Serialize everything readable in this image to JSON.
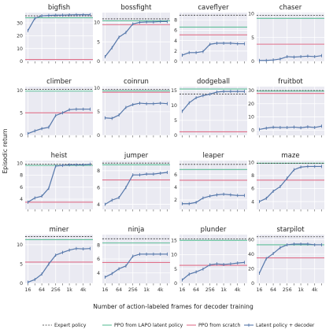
{
  "chart_data": {
    "type": "line",
    "ylabel": "Episodic return",
    "xlabel": "Number of action-labeled frames for decoder training",
    "x": [
      16,
      32,
      64,
      128,
      256,
      512,
      1000,
      2000,
      4000,
      8000
    ],
    "x_ticks": [
      "16",
      "64",
      "256",
      "1k",
      "4k"
    ],
    "x_tick_values": [
      16,
      64,
      256,
      1000,
      4000
    ],
    "x_scale": "log",
    "grid": true,
    "legend_position": "bottom",
    "legend": [
      {
        "key": "expert",
        "label": "Expert policy",
        "color": "#333333",
        "style": "dashed"
      },
      {
        "key": "lapo",
        "label": "PPO from LAPO latent policy",
        "color": "#5fbf99",
        "style": "solid"
      },
      {
        "key": "scratch",
        "label": "PPO from scratch",
        "color": "#e0708a",
        "style": "solid"
      },
      {
        "key": "latent",
        "label": "Latent policy + decoder",
        "color": "#5577aa",
        "style": "marker"
      }
    ],
    "panels": [
      {
        "title": "bigfish",
        "ylim": [
          0,
          38
        ],
        "yticks": [
          0,
          10,
          20,
          30
        ],
        "expert": 35.5,
        "lapo": 34,
        "scratch": 1.5,
        "values": [
          24,
          33.5,
          35.5,
          35.8,
          36,
          36,
          36.2,
          36.3,
          36.3,
          36.3
        ]
      },
      {
        "title": "bossfight",
        "ylim": [
          0,
          12.5
        ],
        "yticks": [
          0,
          5,
          10
        ],
        "expert": 10.9,
        "lapo": 10.4,
        "scratch": 9.4,
        "values": [
          1.2,
          3.5,
          6.2,
          7.4,
          9.6,
          10,
          10.1,
          10.1,
          10.2,
          10.2
        ]
      },
      {
        "title": "caveflyer",
        "ylim": [
          0,
          9.4
        ],
        "yticks": [
          0,
          2,
          4,
          6,
          8
        ],
        "expert": 8.9,
        "lapo": 6.6,
        "scratch": 5.1,
        "values": [
          1.2,
          1.7,
          1.7,
          1.9,
          3.3,
          3.5,
          3.5,
          3.5,
          3.4,
          3.4
        ]
      },
      {
        "title": "chaser",
        "ylim": [
          0,
          10.2
        ],
        "yticks": [
          0,
          5,
          10
        ],
        "expert": 9.6,
        "lapo": 9.0,
        "scratch": 3.6,
        "values": [
          0.2,
          0.2,
          0.3,
          0.5,
          1.0,
          0.9,
          1.0,
          1.1,
          1.0,
          1.2
        ]
      },
      {
        "title": "climber",
        "ylim": [
          0,
          10.8
        ],
        "yticks": [
          0,
          5,
          10
        ],
        "expert": 10.2,
        "lapo": 9.8,
        "scratch": 5.0,
        "values": [
          0.4,
          1.0,
          1.5,
          1.8,
          4.4,
          5.0,
          5.7,
          5.8,
          5.8,
          5.8
        ]
      },
      {
        "title": "coinrun",
        "ylim": [
          0,
          10.3
        ],
        "yticks": [
          0,
          5,
          10
        ],
        "expert": 9.7,
        "lapo": 9.4,
        "scratch": 9.1,
        "values": [
          3.7,
          3.6,
          4.3,
          5.9,
          6.5,
          6.8,
          6.7,
          6.7,
          6.8,
          6.7
        ]
      },
      {
        "title": "dodgeball",
        "ylim": [
          0,
          16.2
        ],
        "yticks": [
          0,
          5,
          10,
          15
        ],
        "expert": 13.7,
        "lapo": 15.4,
        "scratch": 1.2,
        "values": [
          8.0,
          10.8,
          12.5,
          13.2,
          13.7,
          14.4,
          14.6,
          14.6,
          14.6,
          14.6
        ]
      },
      {
        "title": "fruitbot",
        "ylim": [
          -4,
          33
        ],
        "yticks": [
          0,
          10,
          20,
          30
        ],
        "expert": 30.0,
        "lapo": 29.6,
        "scratch": 27.8,
        "values": [
          0.5,
          1.5,
          2.2,
          2.0,
          2.0,
          2.3,
          1.8,
          2.5,
          2.0,
          3.0
        ]
      },
      {
        "title": "heist",
        "ylim": [
          2.3,
          10.4
        ],
        "yticks": [
          4,
          6,
          8,
          10
        ],
        "expert": 9.8,
        "lapo": 9.6,
        "scratch": 3.5,
        "values": [
          3.5,
          4.2,
          4.5,
          5.8,
          9.5,
          9.6,
          9.7,
          9.7,
          9.7,
          9.8
        ]
      },
      {
        "title": "jumper",
        "ylim": [
          3.4,
          9.2
        ],
        "yticks": [
          4,
          6,
          8
        ],
        "expert": 8.9,
        "lapo": 8.7,
        "scratch": 6.9,
        "values": [
          4.0,
          4.5,
          4.8,
          6.0,
          7.5,
          7.5,
          7.6,
          7.6,
          7.7,
          7.8
        ]
      },
      {
        "title": "leaper",
        "ylim": [
          0.5,
          8.2
        ],
        "yticks": [
          2,
          4,
          6
        ],
        "expert": 7.6,
        "lapo": 6.8,
        "scratch": 5.1,
        "values": [
          1.4,
          1.4,
          1.6,
          2.3,
          2.6,
          2.8,
          2.9,
          2.8,
          2.7,
          2.7
        ]
      },
      {
        "title": "maze",
        "ylim": [
          2.8,
          10.3
        ],
        "yticks": [
          4,
          6,
          8,
          10
        ],
        "expert": 9.9,
        "lapo": 9.9,
        "scratch": 7.3,
        "values": [
          4.0,
          4.5,
          5.6,
          6.3,
          7.6,
          8.9,
          9.3,
          9.4,
          9.4,
          9.4
        ]
      },
      {
        "title": "miner",
        "ylim": [
          0,
          12.6
        ],
        "yticks": [
          0,
          5,
          10
        ],
        "expert": 12.1,
        "lapo": 11.3,
        "scratch": 5.5,
        "values": [
          0.3,
          1.0,
          2.4,
          5.0,
          7.3,
          8.0,
          8.6,
          9.0,
          8.9,
          9.0
        ]
      },
      {
        "title": "ninja",
        "ylim": [
          2.5,
          9.5
        ],
        "yticks": [
          4,
          6,
          8
        ],
        "expert": 8.9,
        "lapo": 8.3,
        "scratch": 5.5,
        "values": [
          3.4,
          3.9,
          4.6,
          5.0,
          6.4,
          6.7,
          6.7,
          6.7,
          6.7,
          6.7
        ]
      },
      {
        "title": "plunder",
        "ylim": [
          0,
          17
        ],
        "yticks": [
          0,
          5,
          10,
          15
        ],
        "expert": 15.5,
        "lapo": 15.0,
        "scratch": 6.3,
        "values": [
          1.2,
          3.2,
          4.0,
          5.0,
          6.5,
          6.8,
          6.6,
          6.8,
          7.1,
          7.3
        ]
      },
      {
        "title": "starpilot",
        "ylim": [
          0,
          67
        ],
        "yticks": [
          0,
          20,
          40,
          60
        ],
        "expert": 64.0,
        "lapo": 53.0,
        "scratch": 35.0,
        "values": [
          14,
          34,
          41,
          49,
          53,
          54,
          54,
          54,
          53,
          53
        ]
      }
    ]
  }
}
